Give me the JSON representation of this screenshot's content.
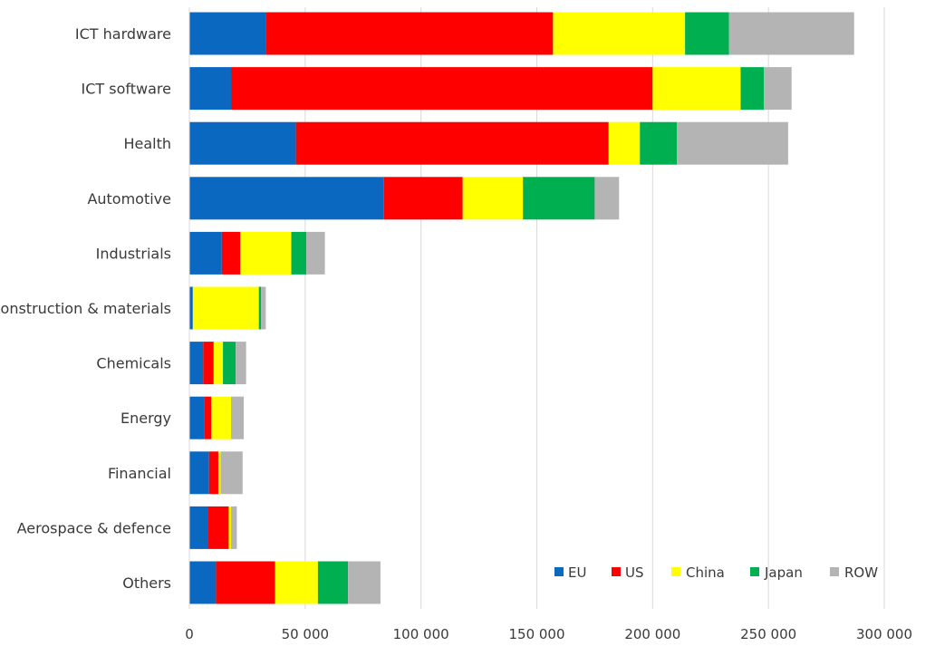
{
  "chart_data": {
    "type": "bar",
    "orientation": "horizontal",
    "stacked": true,
    "categories": [
      "ICT hardware",
      "ICT software",
      "Health",
      "Automotive",
      "Industrials",
      "Construction & materials",
      "Chemicals",
      "Energy",
      "Financial",
      "Aerospace & defence",
      "Others"
    ],
    "series": [
      {
        "name": "EU",
        "color": "#0a68c0",
        "values": [
          33000,
          18000,
          46000,
          84000,
          14000,
          1500,
          6000,
          6500,
          8500,
          8000,
          11500
        ]
      },
      {
        "name": "US",
        "color": "#ff0000",
        "values": [
          124000,
          182000,
          135000,
          34000,
          8000,
          0,
          4500,
          3000,
          4000,
          9000,
          25500
        ]
      },
      {
        "name": "China",
        "color": "#ffff00",
        "values": [
          57000,
          38000,
          13500,
          26000,
          22000,
          28500,
          4000,
          8500,
          1000,
          1000,
          18500
        ]
      },
      {
        "name": "Japan",
        "color": "#00b050",
        "values": [
          19000,
          10000,
          16000,
          31000,
          6500,
          1000,
          5500,
          0,
          0,
          0,
          13000
        ]
      },
      {
        "name": "ROW",
        "color": "#b4b4b4",
        "values": [
          54000,
          12000,
          48000,
          10500,
          8000,
          2000,
          4500,
          5500,
          9500,
          2500,
          14000
        ]
      }
    ],
    "xlim": [
      0,
      300000
    ],
    "xticks": [
      0,
      50000,
      100000,
      150000,
      200000,
      250000,
      300000
    ],
    "xtick_labels": [
      "0",
      "50 000",
      "100 000",
      "150 000",
      "200 000",
      "250 000",
      "300 000"
    ],
    "grid": true,
    "legend_position": "bottom-right",
    "title": "",
    "xlabel": "",
    "ylabel": ""
  }
}
